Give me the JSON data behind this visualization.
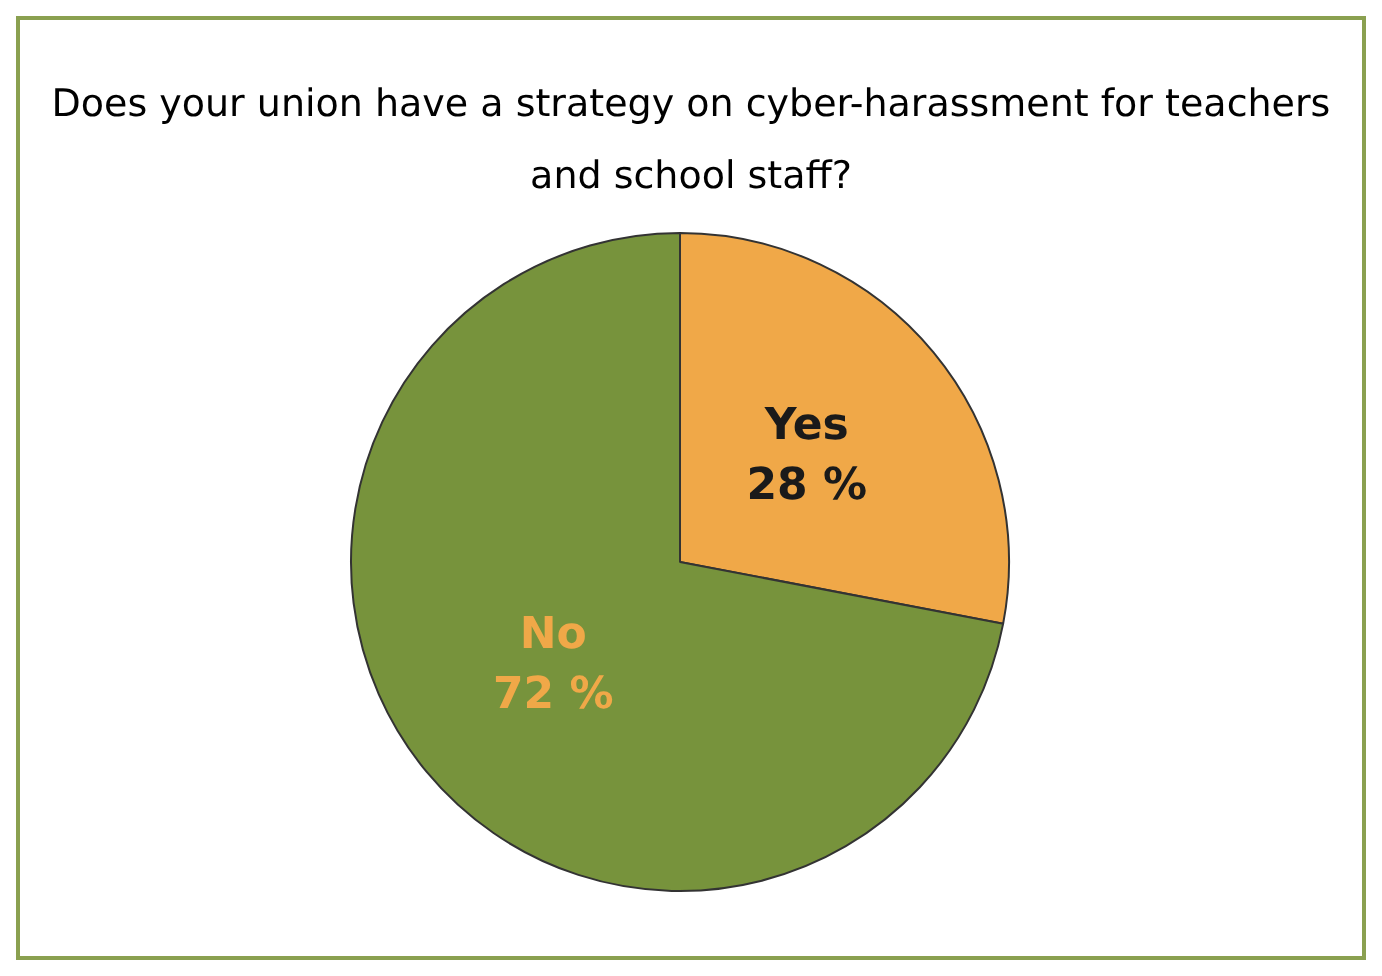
{
  "chart_data": {
    "type": "pie",
    "title": "Does your union have a strategy on cyber-harassment for teachers and school staff?",
    "categories": [
      "Yes",
      "No"
    ],
    "values": [
      28,
      72
    ],
    "colors": [
      "#f0a848",
      "#77933c"
    ],
    "value_labels": [
      "28 %",
      "72 %"
    ],
    "legend": false
  }
}
